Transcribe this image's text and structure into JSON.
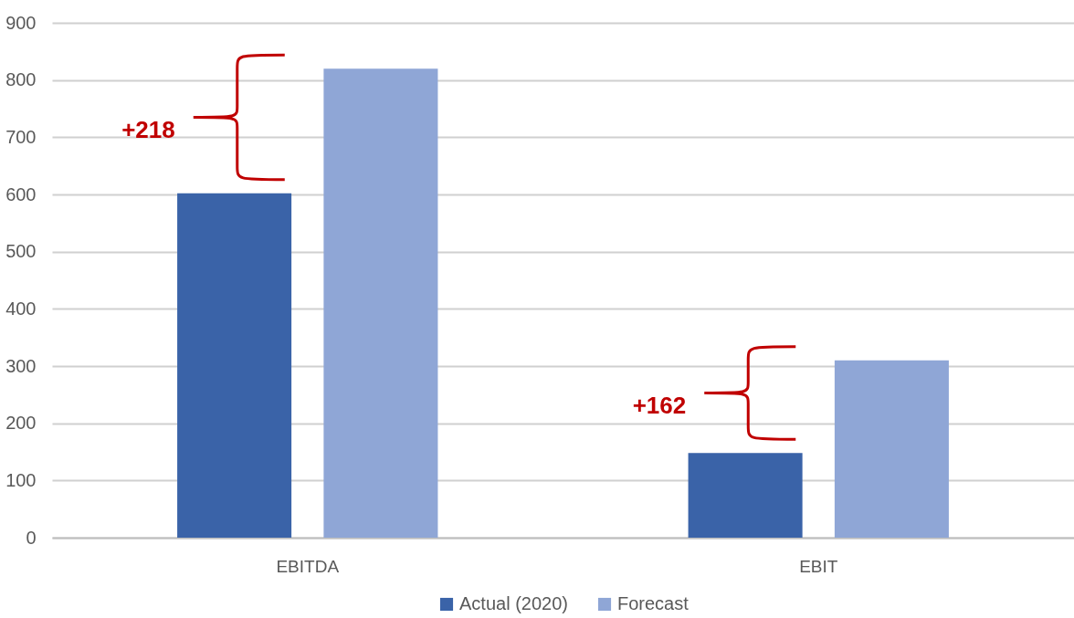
{
  "chart_data": {
    "type": "bar",
    "categories": [
      "EBITDA",
      "EBIT"
    ],
    "series": [
      {
        "name": "Actual (2020)",
        "color": "#3a63a8",
        "values": [
          602,
          148
        ]
      },
      {
        "name": "Forecast",
        "color": "#8fa6d6",
        "values": [
          820,
          310
        ]
      }
    ],
    "ylim": [
      0,
      900
    ],
    "yticks": [
      0,
      100,
      200,
      300,
      400,
      500,
      600,
      700,
      800,
      900
    ],
    "grid": "y",
    "legend": "bottom",
    "annotations": [
      "+218",
      "+162"
    ]
  }
}
